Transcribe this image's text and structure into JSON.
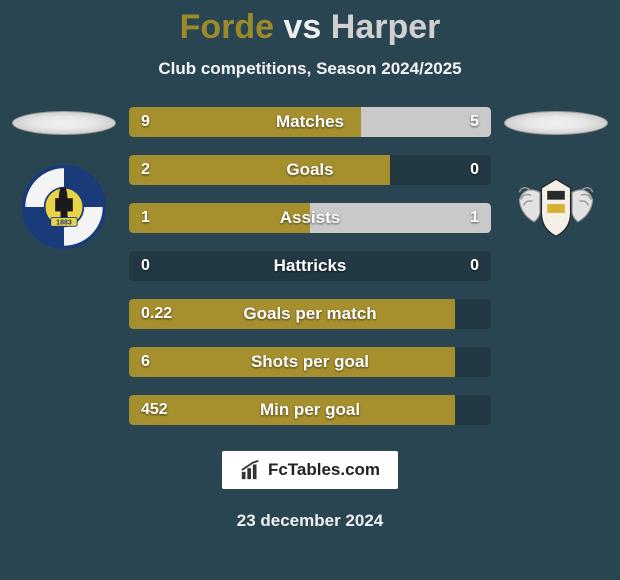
{
  "header": {
    "player1": "Forde",
    "vs": "vs",
    "player2": "Harper",
    "subtitle": "Club competitions, Season 2024/2025"
  },
  "colors": {
    "bar_p1": "#a6902e",
    "bar_p2": "#c9c9c9",
    "row_bg": "rgba(0,0,0,0.18)",
    "page_bg": "#2a4552"
  },
  "stats": [
    {
      "label": "Matches",
      "v1": "9",
      "v2": "5",
      "p1_pct": 64,
      "p2_pct": 36
    },
    {
      "label": "Goals",
      "v1": "2",
      "v2": "0",
      "p1_pct": 72,
      "p2_pct": 0
    },
    {
      "label": "Assists",
      "v1": "1",
      "v2": "1",
      "p1_pct": 50,
      "p2_pct": 50
    },
    {
      "label": "Hattricks",
      "v1": "0",
      "v2": "0",
      "p1_pct": 0,
      "p2_pct": 0
    },
    {
      "label": "Goals per match",
      "v1": "0.22",
      "v2": "",
      "p1_pct": 90,
      "p2_pct": 0
    },
    {
      "label": "Shots per goal",
      "v1": "6",
      "v2": "",
      "p1_pct": 90,
      "p2_pct": 0
    },
    {
      "label": "Min per goal",
      "v1": "452",
      "v2": "",
      "p1_pct": 90,
      "p2_pct": 0
    }
  ],
  "brand": "FcTables.com",
  "date": "23 december 2024"
}
